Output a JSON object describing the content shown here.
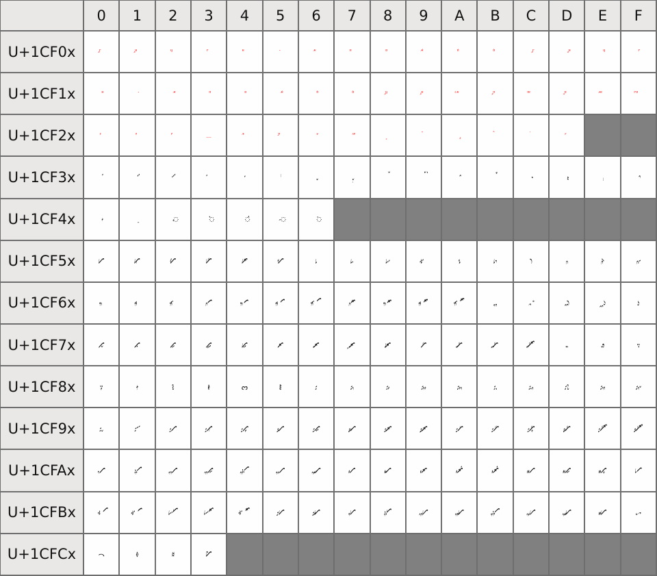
{
  "colors": {
    "header_bg": "#eae8e6",
    "unassigned": "#808080",
    "border": "#6e6e6e"
  },
  "columns": [
    "0",
    "1",
    "2",
    "3",
    "4",
    "5",
    "6",
    "7",
    "8",
    "9",
    "A",
    "B",
    "C",
    "D",
    "E",
    "F"
  ],
  "rows": [
    {
      "label": "U+1CF0x",
      "cells": [
        "𜼀",
        "𜼁",
        "𜼂",
        "𜼃",
        "𜼄",
        "𜼅",
        "𜼆",
        "𜼇",
        "𜼈",
        "𜼉",
        "𜼊",
        "𜼋",
        "𜼌",
        "𜼍",
        "𜼎",
        "𜼏"
      ]
    },
    {
      "label": "U+1CF1x",
      "cells": [
        "𜼐",
        "𜼑",
        "𜼒",
        "𜼓",
        "𜼔",
        "𜼕",
        "𜼖",
        "𜼗",
        "𜼘",
        "𜼙",
        "𜼚",
        "𜼛",
        "𜼜",
        "𜼝",
        "𜼞",
        "𜼟"
      ]
    },
    {
      "label": "U+1CF2x",
      "cells": [
        "𜼠",
        "𜼡",
        "𜼢",
        "𜼣",
        "𜼤",
        "𜼥",
        "𜼦",
        "𜼧",
        "𜼨",
        "𜼩",
        "𜼪",
        "𜼫",
        "𜼬",
        "𜼭",
        null,
        null
      ]
    },
    {
      "label": "U+1CF3x",
      "cells": [
        "𜼰",
        "𜼱",
        "𜼲",
        "𜼳",
        "𜼴",
        "𜼵",
        "𜼶",
        "𜼷",
        "𜼸",
        "𜼹",
        "𜼺",
        "𜼻",
        "𜼼",
        "𜼽",
        "𜼾",
        "𜼿"
      ]
    },
    {
      "label": "U+1CF4x",
      "cells": [
        "𜽀",
        "𜽁",
        "𜽂",
        "𜽃",
        "𜽄",
        "𜽅",
        "𜽆",
        null,
        null,
        null,
        null,
        null,
        null,
        null,
        null,
        null
      ]
    },
    {
      "label": "U+1CF5x",
      "cells": [
        "𜽐",
        "𜽑",
        "𜽒",
        "𜽓",
        "𜽔",
        "𜽕",
        "𜽖",
        "𜽗",
        "𜽘",
        "𜽙",
        "𜽚",
        "𜽛",
        "𜽜",
        "𜽝",
        "𜽞",
        "𜽟"
      ]
    },
    {
      "label": "U+1CF6x",
      "cells": [
        "𜽠",
        "𜽡",
        "𜽢",
        "𜽣",
        "𜽤",
        "𜽥",
        "𜽦",
        "𜽧",
        "𜽨",
        "𜽩",
        "𜽪",
        "𜽫",
        "𜽬",
        "𜽭",
        "𜽮",
        "𜽯"
      ]
    },
    {
      "label": "U+1CF7x",
      "cells": [
        "𜽰",
        "𜽱",
        "𜽲",
        "𜽳",
        "𜽴",
        "𜽵",
        "𜽶",
        "𜽷",
        "𜽸",
        "𜽹",
        "𜽺",
        "𜽻",
        "𜽼",
        "𜽽",
        "𜽾",
        "𜽿"
      ]
    },
    {
      "label": "U+1CF8x",
      "cells": [
        "𜾀",
        "𜾁",
        "𜾂",
        "𜾃",
        "𜾄",
        "𜾅",
        "𜾆",
        "𜾇",
        "𜾈",
        "𜾉",
        "𜾊",
        "𜾋",
        "𜾌",
        "𜾍",
        "𜾎",
        "𜾏"
      ]
    },
    {
      "label": "U+1CF9x",
      "cells": [
        "𜾐",
        "𜾑",
        "𜾒",
        "𜾓",
        "𜾔",
        "𜾕",
        "𜾖",
        "𜾗",
        "𜾘",
        "𜾙",
        "𜾚",
        "𜾛",
        "𜾜",
        "𜾝",
        "𜾞",
        "𜾟"
      ]
    },
    {
      "label": "U+1CFAx",
      "cells": [
        "𜾠",
        "𜾡",
        "𜾢",
        "𜾣",
        "𜾤",
        "𜾥",
        "𜾦",
        "𜾧",
        "𜾨",
        "𜾩",
        "𜾪",
        "𜾫",
        "𜾬",
        "𜾭",
        "𜾮",
        "𜾯"
      ]
    },
    {
      "label": "U+1CFBx",
      "cells": [
        "𜾰",
        "𜾱",
        "𜾲",
        "𜾳",
        "𜾴",
        "𜾵",
        "𜾶",
        "𜾷",
        "𜾸",
        "𜾹",
        "𜾺",
        "𜾻",
        "𜾼",
        "𜾽",
        "𜾾",
        "𜾿"
      ]
    },
    {
      "label": "U+1CFCx",
      "cells": [
        "𜿀",
        "𜿁",
        "𜿂",
        "𜿃",
        null,
        null,
        null,
        null,
        null,
        null,
        null,
        null,
        null,
        null,
        null,
        null
      ]
    }
  ]
}
